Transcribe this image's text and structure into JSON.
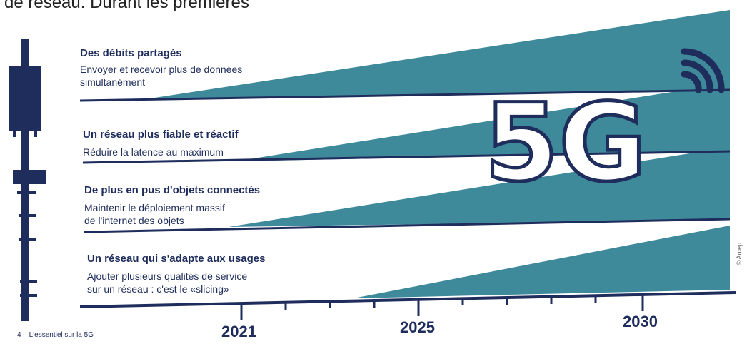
{
  "header": {
    "text": "de réseau. Durant les premières"
  },
  "rows": [
    {
      "title": "Des débits partagés",
      "description": "Envoyer et recevoir plus de données\nsimultanément"
    },
    {
      "title": "Un réseau plus fiable et réactif",
      "description": "Réduire la latence au maximum"
    },
    {
      "title": "De plus en pus d'objets connectés",
      "description": "Maintenir le déploiement massif\nde l'internet des objets"
    },
    {
      "title": "Un réseau qui s'adapte aux usages",
      "description": "Ajouter plusieurs qualités de service\nsur un réseau : c'est le «slicing»"
    }
  ],
  "timeline": {
    "years": [
      "2021",
      "2025",
      "2030"
    ]
  },
  "badge": {
    "text": "5G"
  },
  "footer": {
    "text": "4 – L'essentiel sur la 5G"
  },
  "copyright": {
    "text": "© Arcep"
  },
  "colors": {
    "navy": "#1f2d5c",
    "teal": "#3f8a9a",
    "background": "#ffffff"
  },
  "icons": [
    "antenna-tower-icon",
    "wifi-signal-icon"
  ]
}
